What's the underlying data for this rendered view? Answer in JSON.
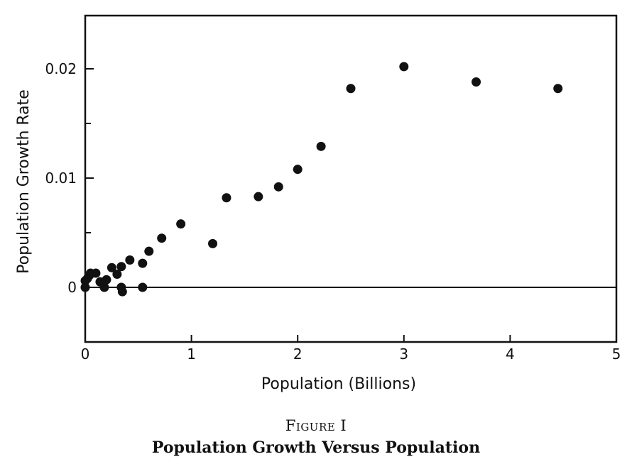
{
  "chart_data": {
    "type": "scatter",
    "xlabel": "Population (Billions)",
    "ylabel": "Population Growth Rate",
    "xlim": [
      0,
      5
    ],
    "ylim": [
      -0.005,
      0.025
    ],
    "xticks": [
      0,
      1,
      2,
      3,
      4,
      5
    ],
    "xtick_labels": [
      "0",
      "1",
      "2",
      "3",
      "4",
      "5"
    ],
    "yticks_major": [
      0,
      0.01,
      0.02
    ],
    "ytick_labels": [
      "0",
      "0.01",
      "0.02"
    ],
    "yticks_minor": [
      0.005,
      0.015
    ],
    "reference_line_y": 0,
    "grid": false,
    "legend": "none",
    "points": [
      {
        "x": 0.0,
        "y": 0.0
      },
      {
        "x": 0.0,
        "y": 0.0006
      },
      {
        "x": 0.02,
        "y": 0.0008
      },
      {
        "x": 0.04,
        "y": 0.0011
      },
      {
        "x": 0.05,
        "y": 0.0013
      },
      {
        "x": 0.1,
        "y": 0.0013
      },
      {
        "x": 0.14,
        "y": 0.0005
      },
      {
        "x": 0.18,
        "y": 0.0
      },
      {
        "x": 0.2,
        "y": 0.0007
      },
      {
        "x": 0.25,
        "y": 0.0018
      },
      {
        "x": 0.3,
        "y": 0.0012
      },
      {
        "x": 0.34,
        "y": 0.0019
      },
      {
        "x": 0.34,
        "y": 0.0
      },
      {
        "x": 0.35,
        "y": -0.0004
      },
      {
        "x": 0.42,
        "y": 0.0025
      },
      {
        "x": 0.54,
        "y": 0.0022
      },
      {
        "x": 0.54,
        "y": 0.0
      },
      {
        "x": 0.6,
        "y": 0.0033
      },
      {
        "x": 0.72,
        "y": 0.0045
      },
      {
        "x": 0.9,
        "y": 0.0058
      },
      {
        "x": 1.2,
        "y": 0.004
      },
      {
        "x": 1.33,
        "y": 0.0082
      },
      {
        "x": 1.63,
        "y": 0.0083
      },
      {
        "x": 1.82,
        "y": 0.0092
      },
      {
        "x": 2.0,
        "y": 0.0108
      },
      {
        "x": 2.22,
        "y": 0.0129
      },
      {
        "x": 2.5,
        "y": 0.0182
      },
      {
        "x": 3.0,
        "y": 0.0202
      },
      {
        "x": 3.68,
        "y": 0.0188
      },
      {
        "x": 4.45,
        "y": 0.0182
      }
    ]
  },
  "caption": {
    "figure_number": "Figure I",
    "title": "Population Growth Versus Population"
  }
}
